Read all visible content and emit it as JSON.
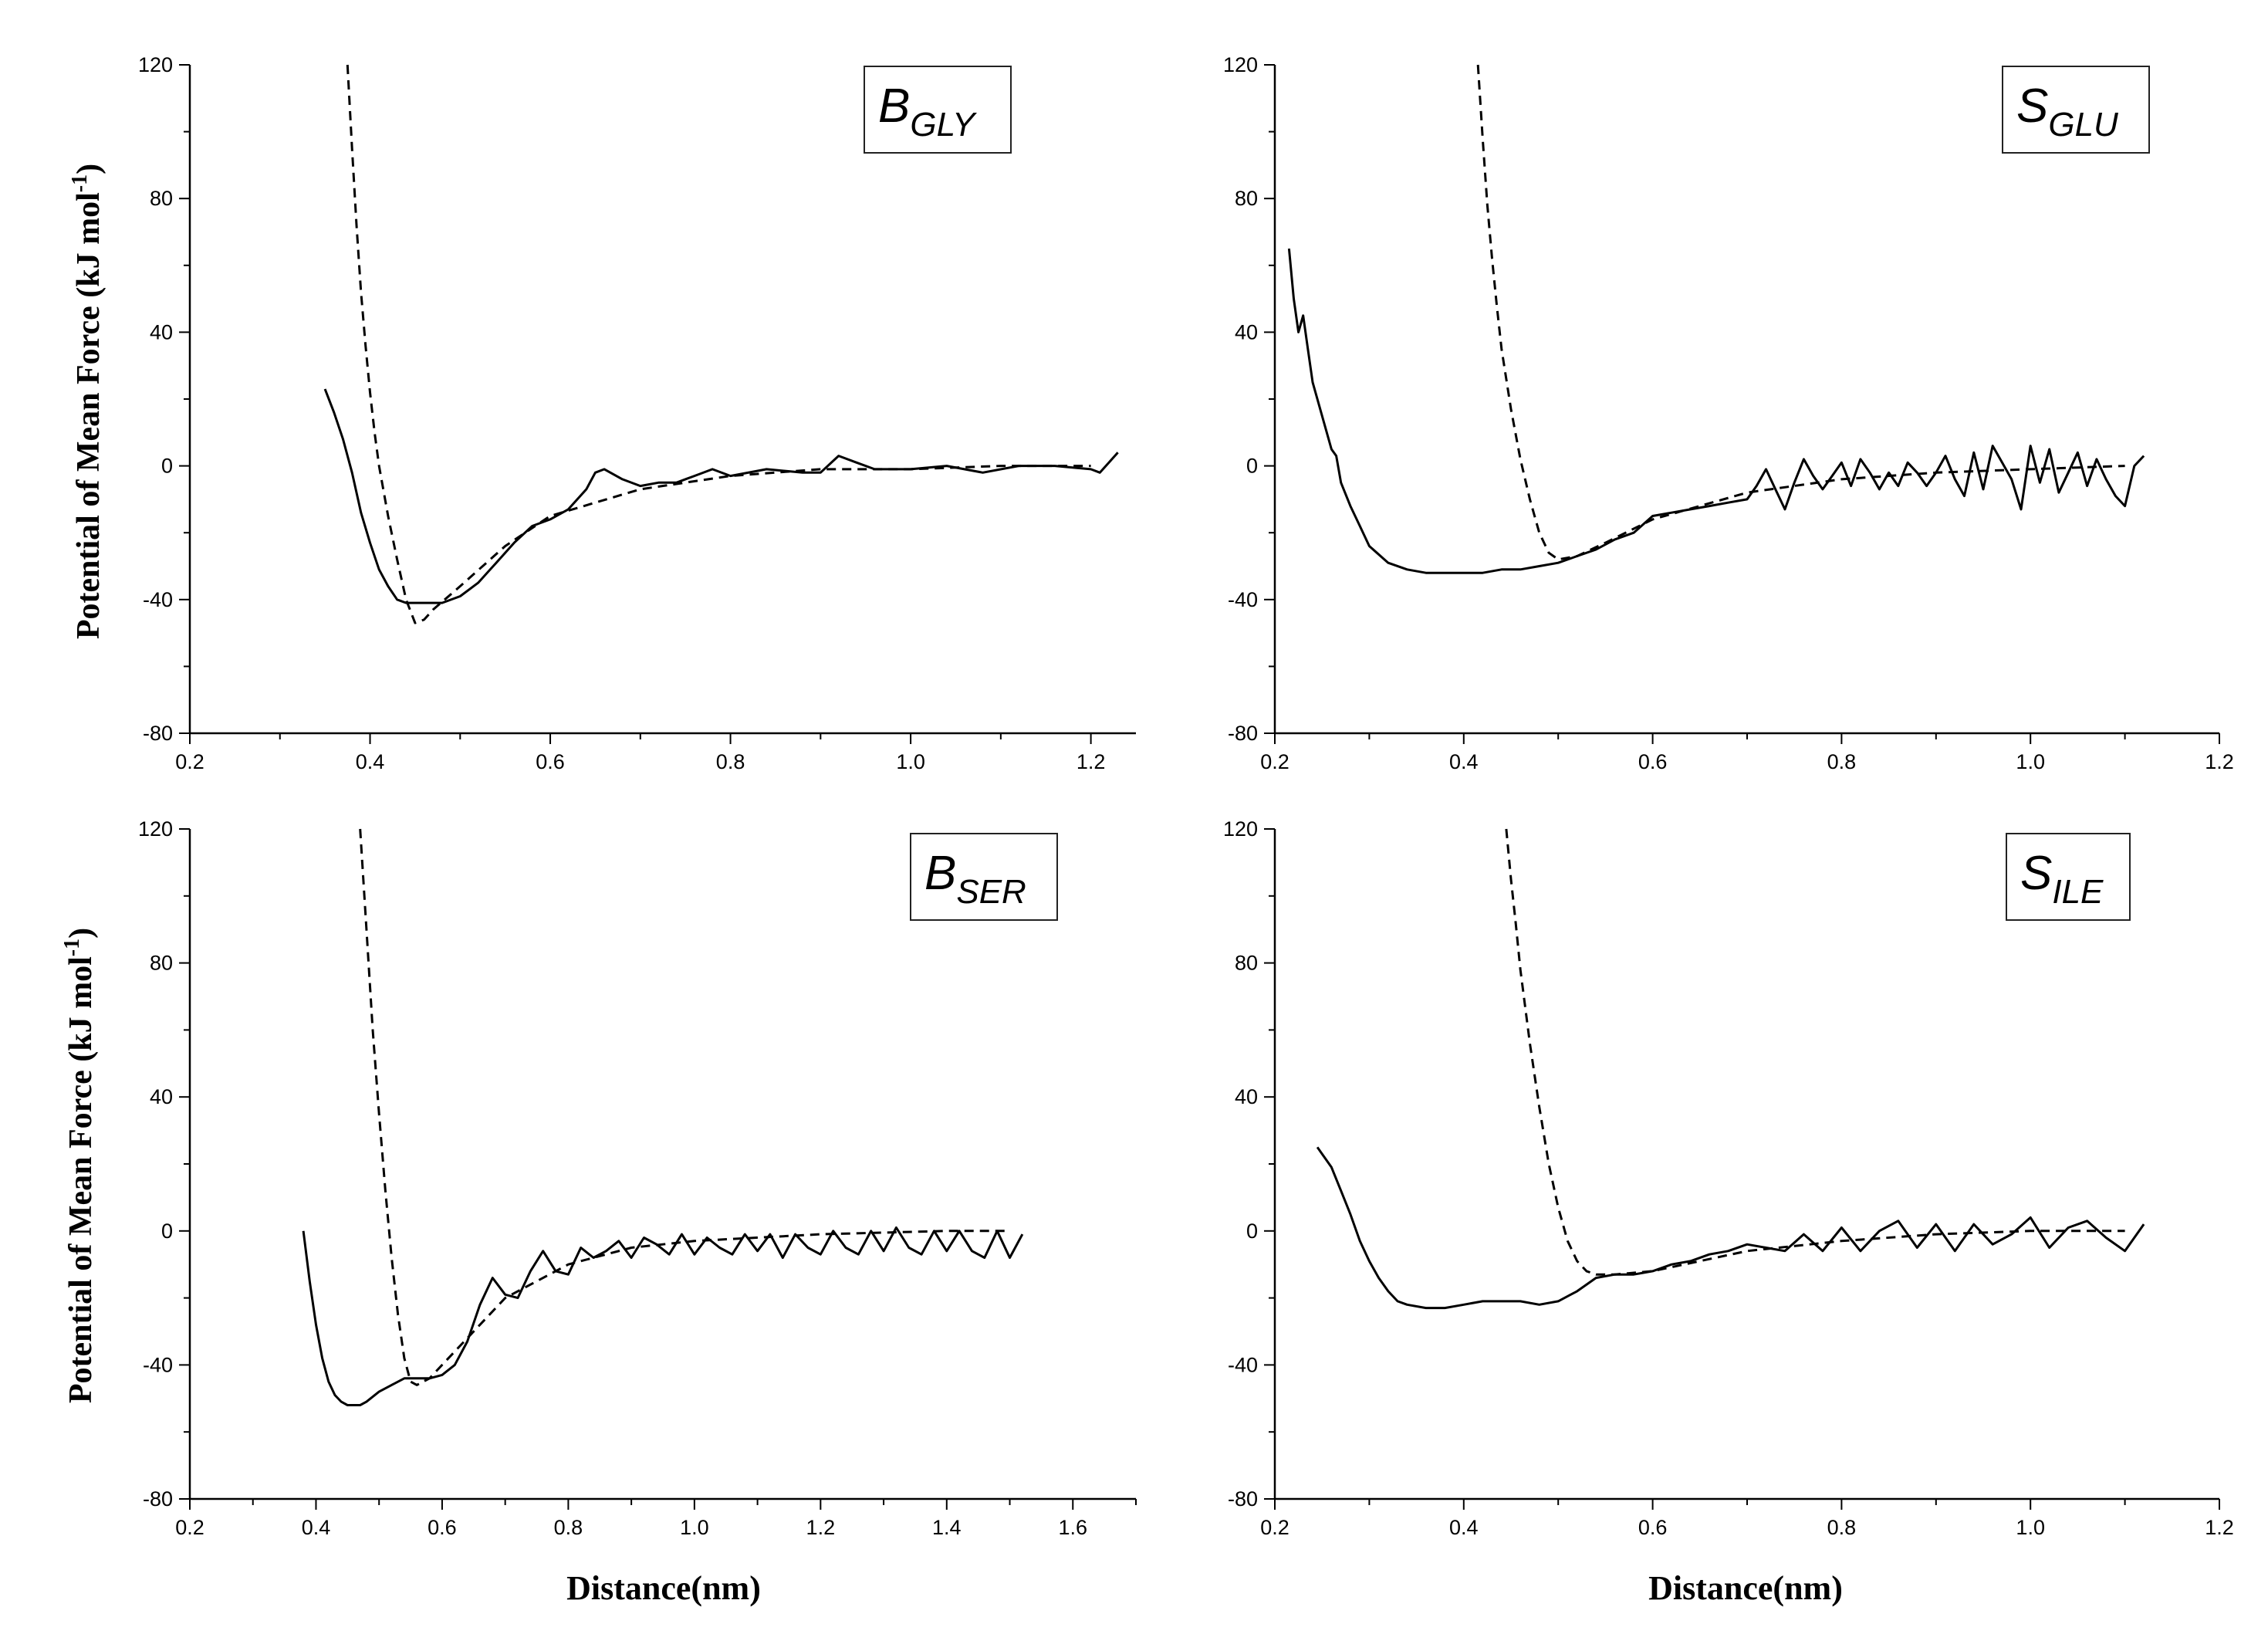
{
  "figure": {
    "ylabel": "Potential of Mean Force",
    "ylabel_unit_main": "(kJ mol",
    "ylabel_unit_sup": "-1",
    "ylabel_unit_close": ")",
    "xlabel": "Distance(nm)"
  },
  "chart_data": [
    {
      "type": "line",
      "panel": "top-left",
      "tag_main": "B",
      "tag_sub": "GLY",
      "xlim": [
        0.2,
        1.25
      ],
      "ylim": [
        -80,
        120
      ],
      "xticks": [
        "0.2",
        "0.4",
        "0.6",
        "0.8",
        "1.0",
        "1.2"
      ],
      "yticks": [
        "-80",
        "-40",
        "0",
        "40",
        "80",
        "120"
      ],
      "series": [
        {
          "style": "solid",
          "x": [
            0.35,
            0.36,
            0.37,
            0.38,
            0.39,
            0.4,
            0.41,
            0.42,
            0.43,
            0.44,
            0.45,
            0.46,
            0.47,
            0.48,
            0.5,
            0.52,
            0.54,
            0.56,
            0.58,
            0.6,
            0.62,
            0.64,
            0.65,
            0.66,
            0.68,
            0.7,
            0.72,
            0.74,
            0.76,
            0.78,
            0.8,
            0.84,
            0.88,
            0.9,
            0.92,
            0.94,
            0.96,
            1.0,
            1.04,
            1.08,
            1.12,
            1.16,
            1.2,
            1.21,
            1.22,
            1.23
          ],
          "y": [
            23,
            16,
            8,
            -2,
            -14,
            -23,
            -31,
            -36,
            -40,
            -41,
            -41,
            -41,
            -41,
            -41,
            -39,
            -35,
            -29,
            -23,
            -18,
            -16,
            -13,
            -7,
            -2,
            -1,
            -4,
            -6,
            -5,
            -5,
            -3,
            -1,
            -3,
            -1,
            -2,
            -2,
            3,
            1,
            -1,
            -1,
            0,
            -2,
            0,
            0,
            -1,
            -2,
            1,
            4
          ]
        },
        {
          "style": "dashed",
          "x": [
            0.375,
            0.38,
            0.385,
            0.39,
            0.395,
            0.4,
            0.405,
            0.41,
            0.42,
            0.43,
            0.44,
            0.45,
            0.46,
            0.47,
            0.5,
            0.55,
            0.6,
            0.7,
            0.8,
            0.9,
            1.0,
            1.1,
            1.2
          ],
          "y": [
            120,
            95,
            72,
            52,
            36,
            22,
            10,
            0,
            -15,
            -28,
            -40,
            -47,
            -46,
            -43,
            -36,
            -24,
            -15,
            -7,
            -3,
            -1,
            -1,
            0,
            0
          ]
        }
      ]
    },
    {
      "type": "line",
      "panel": "top-right",
      "tag_main": "S",
      "tag_sub": "GLU",
      "xlim": [
        0.2,
        1.2
      ],
      "ylim": [
        -80,
        120
      ],
      "xticks": [
        "0.2",
        "0.4",
        "0.6",
        "0.8",
        "1.0",
        "1.2"
      ],
      "yticks": [
        "-80",
        "-40",
        "0",
        "40",
        "80",
        "120"
      ],
      "series": [
        {
          "style": "solid",
          "x": [
            0.215,
            0.22,
            0.225,
            0.23,
            0.235,
            0.24,
            0.25,
            0.26,
            0.265,
            0.27,
            0.28,
            0.29,
            0.3,
            0.32,
            0.34,
            0.36,
            0.38,
            0.4,
            0.42,
            0.44,
            0.46,
            0.48,
            0.5,
            0.52,
            0.54,
            0.56,
            0.58,
            0.6,
            0.62,
            0.64,
            0.66,
            0.68,
            0.7,
            0.71,
            0.72,
            0.73,
            0.74,
            0.75,
            0.76,
            0.77,
            0.78,
            0.79,
            0.8,
            0.81,
            0.82,
            0.83,
            0.84,
            0.85,
            0.86,
            0.87,
            0.88,
            0.89,
            0.9,
            0.91,
            0.92,
            0.93,
            0.94,
            0.95,
            0.96,
            0.97,
            0.98,
            0.99,
            1.0,
            1.01,
            1.02,
            1.03,
            1.04,
            1.05,
            1.06,
            1.07,
            1.08,
            1.09,
            1.1,
            1.11,
            1.12
          ],
          "y": [
            65,
            50,
            40,
            45,
            35,
            25,
            15,
            5,
            3,
            -5,
            -12,
            -18,
            -24,
            -29,
            -31,
            -32,
            -32,
            -32,
            -32,
            -31,
            -31,
            -30,
            -29,
            -27,
            -25,
            -22,
            -20,
            -15,
            -14,
            -13,
            -12,
            -11,
            -10,
            -6,
            -1,
            -7,
            -13,
            -5,
            2,
            -3,
            -7,
            -3,
            1,
            -6,
            2,
            -2,
            -7,
            -2,
            -6,
            1,
            -2,
            -6,
            -2,
            3,
            -4,
            -9,
            4,
            -7,
            6,
            1,
            -4,
            -13,
            6,
            -5,
            5,
            -8,
            -2,
            4,
            -6,
            2,
            -4,
            -9,
            -12,
            0,
            3
          ]
        },
        {
          "style": "dashed",
          "x": [
            0.415,
            0.42,
            0.425,
            0.43,
            0.435,
            0.44,
            0.45,
            0.46,
            0.47,
            0.48,
            0.49,
            0.5,
            0.52,
            0.55,
            0.6,
            0.7,
            0.8,
            0.9,
            1.0,
            1.1
          ],
          "y": [
            120,
            98,
            78,
            62,
            48,
            35,
            17,
            2,
            -10,
            -20,
            -26,
            -28,
            -27,
            -23,
            -16,
            -8,
            -4,
            -2,
            -1,
            0
          ]
        }
      ]
    },
    {
      "type": "line",
      "panel": "bottom-left",
      "tag_main": "B",
      "tag_sub": "SER",
      "xlim": [
        0.2,
        1.7
      ],
      "ylim": [
        -80,
        120
      ],
      "xticks": [
        "0.2",
        "0.4",
        "0.6",
        "0.8",
        "1.0",
        "1.2",
        "1.4",
        "1.6"
      ],
      "yticks": [
        "-80",
        "-40",
        "0",
        "40",
        "80",
        "120"
      ],
      "series": [
        {
          "style": "solid",
          "x": [
            0.38,
            0.39,
            0.4,
            0.41,
            0.42,
            0.43,
            0.44,
            0.45,
            0.46,
            0.47,
            0.48,
            0.5,
            0.52,
            0.54,
            0.56,
            0.58,
            0.6,
            0.62,
            0.64,
            0.66,
            0.68,
            0.7,
            0.72,
            0.74,
            0.76,
            0.78,
            0.8,
            0.82,
            0.84,
            0.86,
            0.88,
            0.9,
            0.92,
            0.94,
            0.96,
            0.98,
            1.0,
            1.02,
            1.04,
            1.06,
            1.08,
            1.1,
            1.12,
            1.14,
            1.16,
            1.18,
            1.2,
            1.22,
            1.24,
            1.26,
            1.28,
            1.3,
            1.32,
            1.34,
            1.36,
            1.38,
            1.4,
            1.42,
            1.44,
            1.46,
            1.48,
            1.5,
            1.52
          ],
          "y": [
            0,
            -15,
            -28,
            -38,
            -45,
            -49,
            -51,
            -52,
            -52,
            -52,
            -51,
            -48,
            -46,
            -44,
            -44,
            -44,
            -43,
            -40,
            -33,
            -22,
            -14,
            -19,
            -20,
            -12,
            -6,
            -12,
            -13,
            -5,
            -8,
            -6,
            -3,
            -8,
            -2,
            -4,
            -7,
            -1,
            -7,
            -2,
            -5,
            -7,
            -1,
            -6,
            -1,
            -8,
            -1,
            -5,
            -7,
            0,
            -5,
            -7,
            0,
            -6,
            1,
            -5,
            -7,
            0,
            -6,
            0,
            -6,
            -8,
            0,
            -8,
            -1
          ]
        },
        {
          "style": "dashed",
          "x": [
            0.47,
            0.48,
            0.49,
            0.5,
            0.51,
            0.52,
            0.53,
            0.54,
            0.55,
            0.56,
            0.58,
            0.6,
            0.65,
            0.7,
            0.8,
            0.9,
            1.0,
            1.2,
            1.4,
            1.5
          ],
          "y": [
            120,
            90,
            60,
            35,
            12,
            -8,
            -25,
            -38,
            -45,
            -46,
            -44,
            -40,
            -30,
            -20,
            -10,
            -5,
            -3,
            -1,
            0,
            0
          ]
        }
      ]
    },
    {
      "type": "line",
      "panel": "bottom-right",
      "tag_main": "S",
      "tag_sub": "ILE",
      "xlim": [
        0.2,
        1.2
      ],
      "ylim": [
        -80,
        120
      ],
      "xticks": [
        "0.2",
        "0.4",
        "0.6",
        "0.8",
        "1.0",
        "1.2"
      ],
      "yticks": [
        "-80",
        "-40",
        "0",
        "40",
        "80",
        "120"
      ],
      "series": [
        {
          "style": "solid",
          "x": [
            0.245,
            0.25,
            0.26,
            0.27,
            0.28,
            0.29,
            0.3,
            0.31,
            0.32,
            0.33,
            0.34,
            0.36,
            0.38,
            0.4,
            0.42,
            0.44,
            0.46,
            0.48,
            0.5,
            0.52,
            0.54,
            0.56,
            0.58,
            0.6,
            0.62,
            0.64,
            0.66,
            0.68,
            0.7,
            0.72,
            0.74,
            0.76,
            0.78,
            0.8,
            0.82,
            0.84,
            0.86,
            0.88,
            0.9,
            0.92,
            0.94,
            0.96,
            0.98,
            1.0,
            1.02,
            1.04,
            1.06,
            1.08,
            1.1,
            1.12
          ],
          "y": [
            25,
            23,
            19,
            12,
            5,
            -3,
            -9,
            -14,
            -18,
            -21,
            -22,
            -23,
            -23,
            -22,
            -21,
            -21,
            -21,
            -22,
            -21,
            -18,
            -14,
            -13,
            -13,
            -12,
            -10,
            -9,
            -7,
            -6,
            -4,
            -5,
            -6,
            -1,
            -6,
            1,
            -6,
            0,
            3,
            -5,
            2,
            -6,
            2,
            -4,
            -1,
            4,
            -5,
            1,
            3,
            -2,
            -6,
            2
          ]
        },
        {
          "style": "dashed",
          "x": [
            0.445,
            0.45,
            0.455,
            0.46,
            0.47,
            0.48,
            0.49,
            0.5,
            0.51,
            0.52,
            0.53,
            0.54,
            0.56,
            0.6,
            0.7,
            0.8,
            0.9,
            1.0,
            1.1
          ],
          "y": [
            120,
            105,
            92,
            78,
            56,
            37,
            20,
            7,
            -3,
            -9,
            -12,
            -13,
            -13,
            -12,
            -6,
            -3,
            -1,
            0,
            0
          ]
        }
      ]
    }
  ]
}
